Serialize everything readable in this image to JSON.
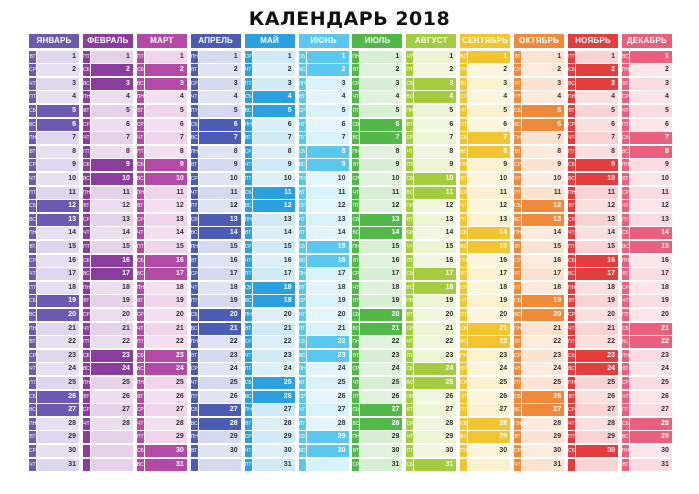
{
  "title": "КАЛЕНДАРЬ 2018",
  "months": [
    {
      "name": "ЯНВАРЬ",
      "color": "#6b5bb0",
      "light": "#dcd6ee",
      "days": 31,
      "first_weekday": 1
    },
    {
      "name": "ФЕВРАЛЬ",
      "color": "#8a3d9c",
      "light": "#e5d1ea",
      "days": 28,
      "first_weekday": 4
    },
    {
      "name": "МАРТ",
      "color": "#b34aa8",
      "light": "#efd4eb",
      "days": 31,
      "first_weekday": 4
    },
    {
      "name": "АПРЕЛЬ",
      "color": "#4b5cb4",
      "light": "#d4d9ef",
      "days": 30,
      "first_weekday": 0
    },
    {
      "name": "МАЙ",
      "color": "#2aa0df",
      "light": "#cfe9f7",
      "days": 31,
      "first_weekday": 2
    },
    {
      "name": "ИЮНЬ",
      "color": "#5ac8ee",
      "light": "#d8f2fb",
      "days": 30,
      "first_weekday": 5
    },
    {
      "name": "ИЮЛЬ",
      "color": "#52b848",
      "light": "#d6eed2",
      "days": 31,
      "first_weekday": 0
    },
    {
      "name": "АВГУСТ",
      "color": "#a3cc3e",
      "light": "#ebf4d3",
      "days": 31,
      "first_weekday": 3
    },
    {
      "name": "СЕНТЯБРЬ",
      "color": "#f2c530",
      "light": "#fcf1cf",
      "days": 30,
      "first_weekday": 6
    },
    {
      "name": "ОКТЯБРЬ",
      "color": "#ef8a3a",
      "light": "#fce3d1",
      "days": 31,
      "first_weekday": 1
    },
    {
      "name": "НОЯБРЬ",
      "color": "#e43d3d",
      "light": "#f9d3d3",
      "days": 30,
      "first_weekday": 4
    },
    {
      "name": "ДЕКАБРЬ",
      "color": "#ea5f7e",
      "light": "#fbdbe2",
      "days": 31,
      "first_weekday": 6
    }
  ],
  "weekday_labels": [
    "ПН",
    "ВТ",
    "СР",
    "ЧТ",
    "ПТ",
    "СБ",
    "ВС"
  ],
  "max_days": 31
}
